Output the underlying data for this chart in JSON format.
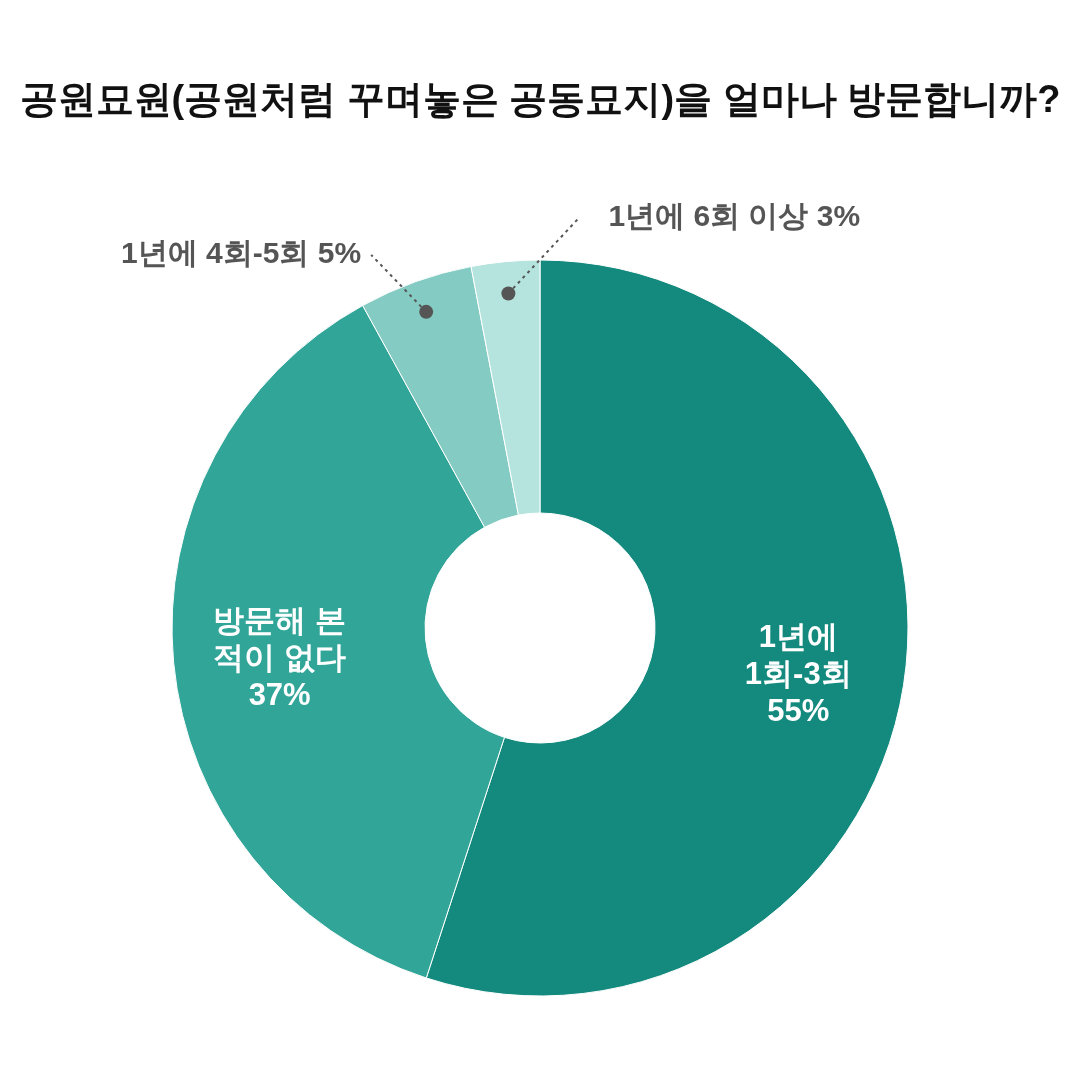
{
  "chart_data": {
    "type": "donut",
    "title": "공원묘원(공원처럼 꾸며놓은 공동묘지)을 얼마나 방문합니까?",
    "categories": [
      "1년에\n1회-3회",
      "방문해 본\n적이 없다",
      "1년에 4회-5회",
      "1년에 6회 이상"
    ],
    "values": [
      55,
      37,
      5,
      3
    ],
    "colors": [
      "#138a7d",
      "#31a598",
      "#84cbc3",
      "#b5e3de"
    ],
    "value_labels": [
      "55%",
      "37%",
      "5%",
      "3%"
    ]
  }
}
